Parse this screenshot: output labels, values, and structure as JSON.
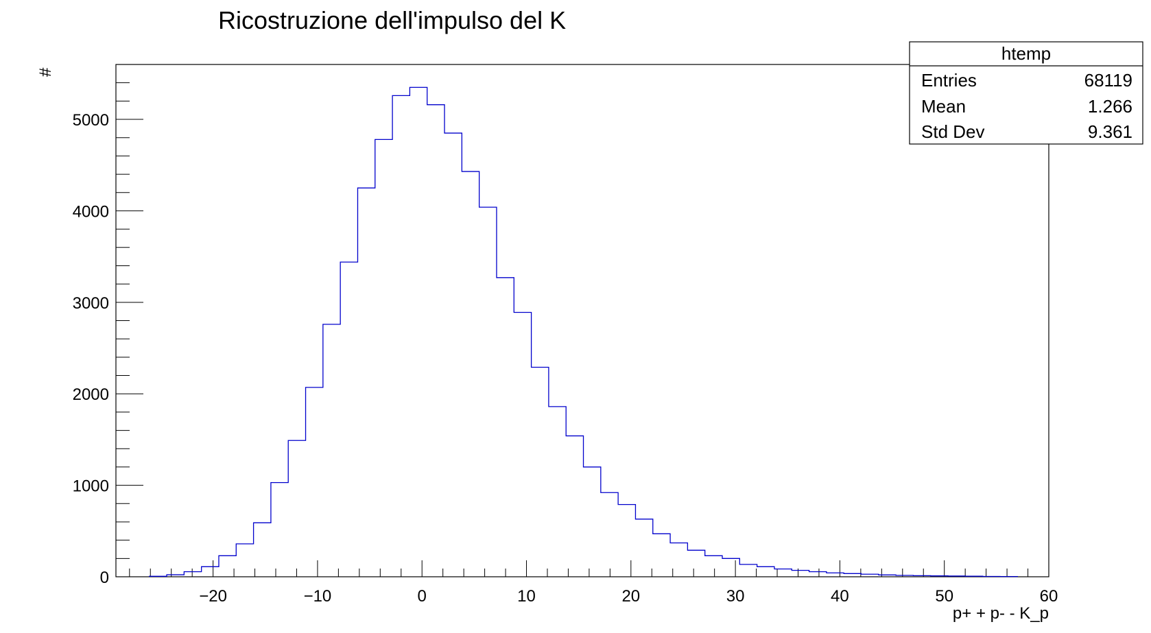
{
  "chart_data": {
    "type": "bar",
    "title": "Ricostruzione dell'impulso del K",
    "xlabel": "p+ + p- - K_p",
    "ylabel": "#",
    "xlim": [
      -29.3,
      60
    ],
    "ylim": [
      0,
      5600
    ],
    "x_ticks": [
      -20,
      -10,
      0,
      10,
      20,
      30,
      40,
      50,
      60
    ],
    "x_tick_labels": [
      "−20",
      "−10",
      "0",
      "10",
      "20",
      "30",
      "40",
      "50",
      "60"
    ],
    "y_ticks": [
      0,
      1000,
      2000,
      3000,
      4000,
      5000
    ],
    "y_tick_labels": [
      "0",
      "1000",
      "2000",
      "3000",
      "4000",
      "5000"
    ],
    "bin_start": -26.1,
    "bin_width": 1.662,
    "values": [
      5,
      22,
      55,
      110,
      230,
      360,
      590,
      1030,
      1490,
      2070,
      2760,
      3440,
      4250,
      4780,
      5260,
      5350,
      5160,
      4850,
      4430,
      4040,
      3270,
      2890,
      2290,
      1860,
      1540,
      1200,
      920,
      790,
      630,
      470,
      370,
      290,
      230,
      200,
      135,
      110,
      85,
      70,
      55,
      42,
      35,
      28,
      20,
      15,
      12,
      10,
      8,
      6,
      4,
      3
    ],
    "line_color": "#0000cc",
    "stats_box": {
      "name": "htemp",
      "rows": [
        {
          "label": "Entries",
          "value": "68119"
        },
        {
          "label": "Mean",
          "value": "1.266"
        },
        {
          "label": "Std Dev",
          "value": "9.361"
        }
      ]
    }
  }
}
